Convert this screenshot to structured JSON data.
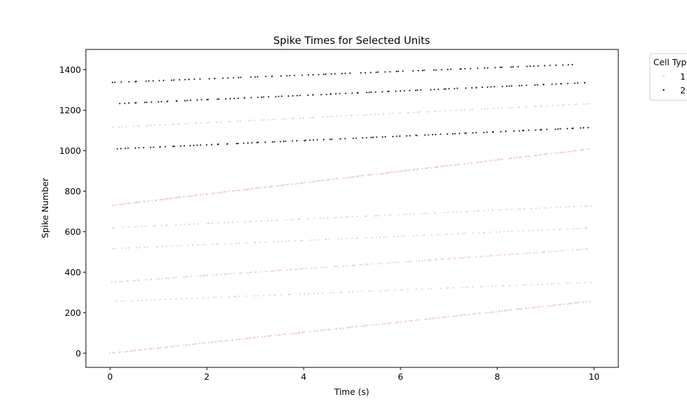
{
  "chart_data": {
    "type": "scatter",
    "title": "Spike Times for Selected Units",
    "xlabel": "Time (s)",
    "ylabel": "Spike Number",
    "xlim": [
      -0.5,
      10.5
    ],
    "ylim": [
      -70,
      1500
    ],
    "xticks": [
      0,
      2,
      4,
      6,
      8,
      10
    ],
    "xtick_labels": [
      "0",
      "2",
      "4",
      "6",
      "8",
      "10"
    ],
    "yticks": [
      0,
      200,
      400,
      600,
      800,
      1000,
      1200,
      1400
    ],
    "ytick_labels": [
      "0",
      "200",
      "400",
      "600",
      "800",
      "1000",
      "1200",
      "1400"
    ],
    "grid": false,
    "legend": {
      "title": "Cell Type",
      "placement": "outside-top-right",
      "entries": [
        {
          "label": "1",
          "color": "#eecec8"
        },
        {
          "label": "2",
          "color": "#2b1f3b"
        }
      ]
    },
    "series": [
      {
        "name": "1",
        "color": "#eecec8",
        "units": [
          {
            "start": 0,
            "end": 255,
            "t0": 0.0,
            "t1": 9.9
          },
          {
            "start": 256,
            "end": 350,
            "t0": 0.1,
            "t1": 9.95
          },
          {
            "start": 351,
            "end": 515,
            "t0": 0.02,
            "t1": 9.9
          },
          {
            "start": 516,
            "end": 618,
            "t0": 0.05,
            "t1": 9.9
          },
          {
            "start": 619,
            "end": 728,
            "t0": 0.05,
            "t1": 9.95
          },
          {
            "start": 729,
            "end": 1008,
            "t0": 0.0,
            "t1": 9.9
          },
          {
            "start": 1115,
            "end": 1232,
            "t0": 0.05,
            "t1": 9.9
          }
        ]
      },
      {
        "name": "2",
        "color": "#2b1f3b",
        "units": [
          {
            "start": 1009,
            "end": 1114,
            "t0": 0.15,
            "t1": 9.9
          },
          {
            "start": 1233,
            "end": 1336,
            "t0": 0.2,
            "t1": 9.85
          },
          {
            "start": 1337,
            "end": 1425,
            "t0": 0.05,
            "t1": 9.55
          }
        ]
      }
    ]
  }
}
